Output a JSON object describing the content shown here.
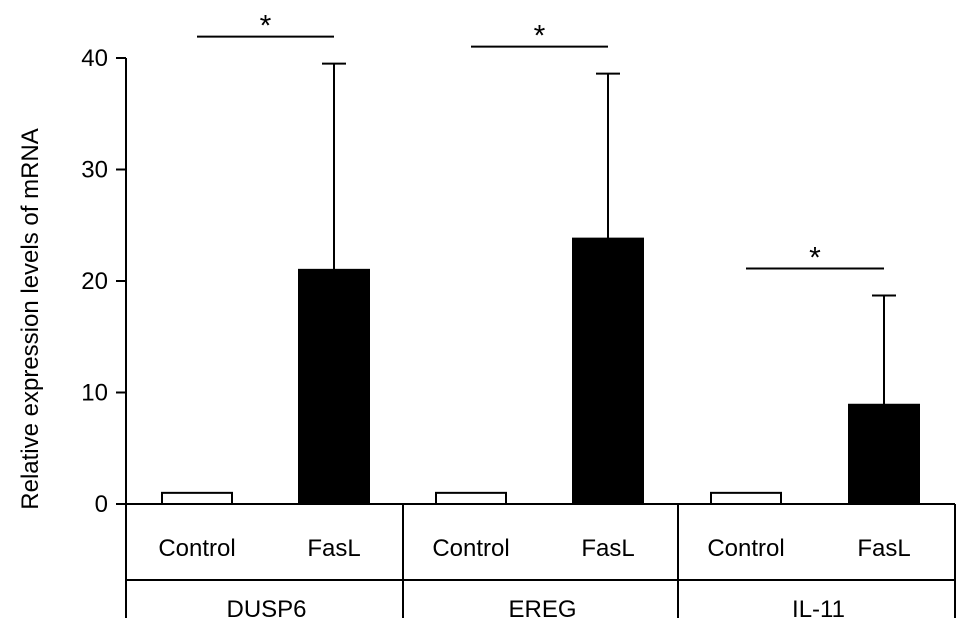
{
  "chart_data": {
    "type": "bar",
    "title": "",
    "ylabel": "Relative expression levels of mRNA",
    "xlabel": "",
    "ylim": [
      0,
      40
    ],
    "yticks": [
      0,
      10,
      20,
      30,
      40
    ],
    "grid": false,
    "legend": "none",
    "groups": [
      {
        "name": "DUSP6",
        "bars": [
          {
            "label": "Control",
            "value": 1.0,
            "error": 0,
            "fill": "#ffffff"
          },
          {
            "label": "FasL",
            "value": 21.0,
            "error": 18.5,
            "fill": "#000000"
          }
        ],
        "significance": "*"
      },
      {
        "name": "EREG",
        "bars": [
          {
            "label": "Control",
            "value": 1.0,
            "error": 0,
            "fill": "#ffffff"
          },
          {
            "label": "FasL",
            "value": 23.8,
            "error": 14.8,
            "fill": "#000000"
          }
        ],
        "significance": "*"
      },
      {
        "name": "IL-11",
        "bars": [
          {
            "label": "Control",
            "value": 1.0,
            "error": 0,
            "fill": "#ffffff"
          },
          {
            "label": "FasL",
            "value": 8.9,
            "error": 9.8,
            "fill": "#000000"
          }
        ],
        "significance": "*"
      }
    ]
  }
}
